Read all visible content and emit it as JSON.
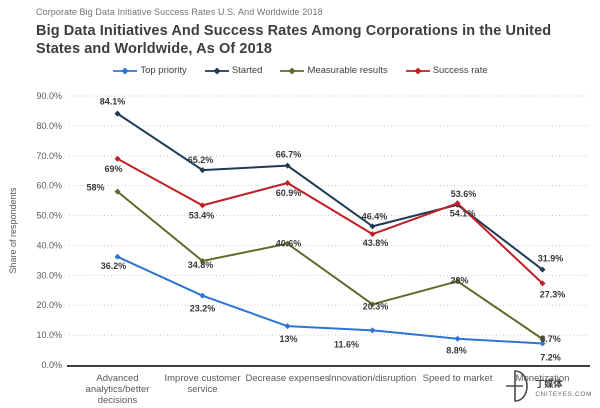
{
  "eyebrow": "Corporate Big Data Initiative Success Rates U.S. And Worldwide 2018",
  "title": "Big Data Initiatives And Success Rates Among Corporations in the United States and Worldwide, As Of 2018",
  "watermark": {
    "cn": "丁媒体",
    "site": "CNITEYES.COM"
  },
  "chart_data": {
    "type": "line",
    "title": "Big Data Initiatives And Success Rates Among Corporations in the United States and Worldwide, As Of 2018",
    "xlabel": "",
    "ylabel": "Share of respondents",
    "ylim": [
      0,
      90
    ],
    "ytick_step": 10,
    "ytick_format": "percent-one-decimal",
    "grid": "horizontal-dotted",
    "legend_position": "top",
    "marker": "diamond",
    "categories": [
      "Advanced\nanalytics/better\ndecisions",
      "Improve customer\nservice",
      "Decrease expenses",
      "Innovation/disruption",
      "Speed to market",
      "Monetization"
    ],
    "series": [
      {
        "name": "Top priority",
        "color": "#2e74d4",
        "values": [
          36.2,
          23.2,
          13,
          11.6,
          8.8,
          7.2
        ]
      },
      {
        "name": "Started",
        "color": "#1f3a52",
        "values": [
          84.1,
          65.2,
          66.7,
          46.4,
          53.6,
          31.9
        ]
      },
      {
        "name": "Measurable results",
        "color": "#5e6b2b",
        "values": [
          58,
          34.8,
          40.6,
          20.3,
          28,
          8.7
        ]
      },
      {
        "name": "Success rate",
        "color": "#bf2026",
        "values": [
          69,
          53.4,
          60.9,
          43.8,
          54.1,
          27.3
        ]
      }
    ]
  }
}
